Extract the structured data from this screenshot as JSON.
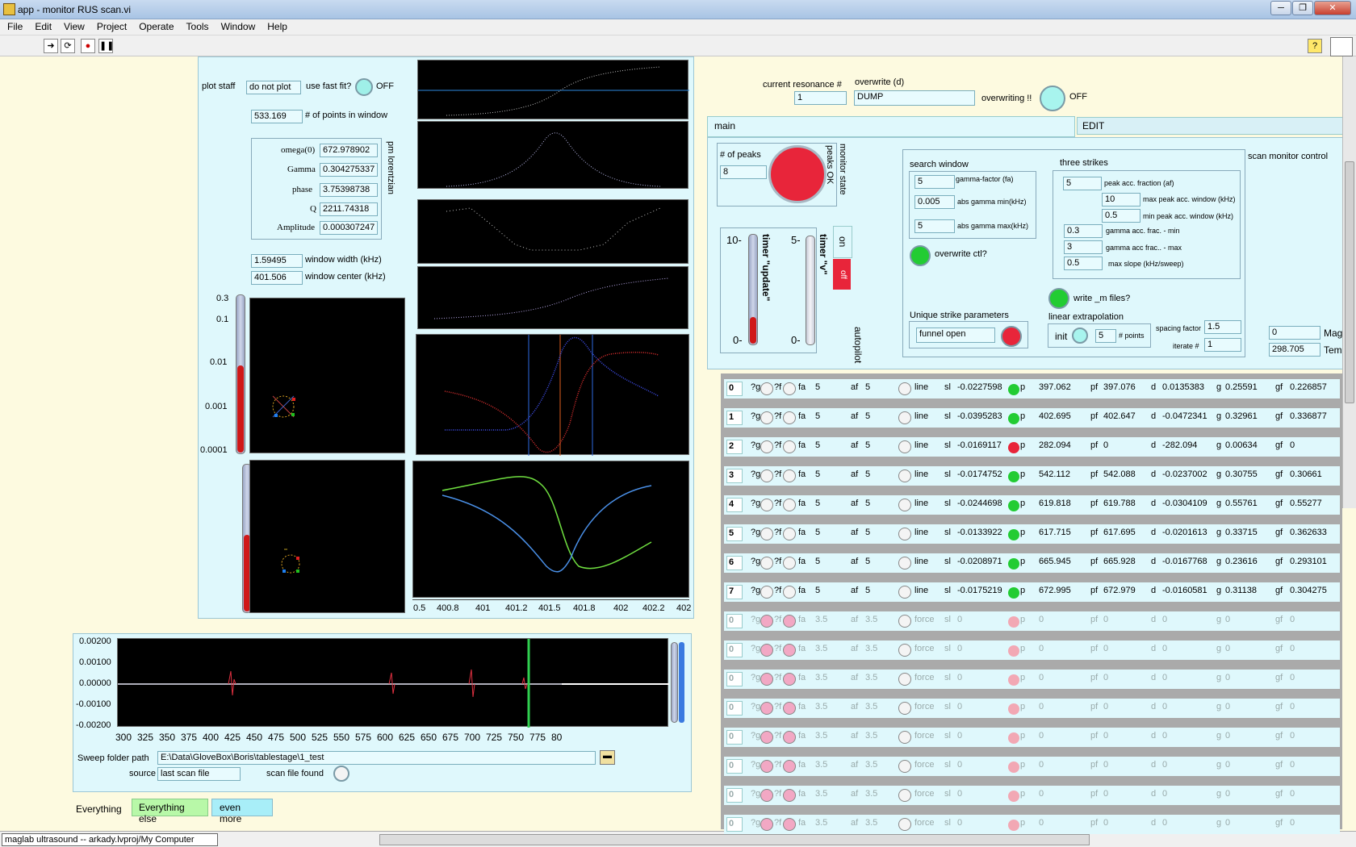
{
  "window": {
    "title": "app - monitor RUS scan.vi",
    "min": "─",
    "max": "❐",
    "close": "✕"
  },
  "menu": [
    "File",
    "Edit",
    "View",
    "Project",
    "Operate",
    "Tools",
    "Window",
    "Help"
  ],
  "help_label": "?",
  "left": {
    "plot_staff_label": "plot staff",
    "plot_staff_value": "do not plot",
    "fast_fit_label": "use fast fit?",
    "fast_fit_state": "OFF",
    "points_value": "533.169",
    "points_label": "# of points in window",
    "lorentzian_label": "pm lorentzian",
    "params": [
      {
        "label": "omega(0)",
        "value": "672.978902"
      },
      {
        "label": "Gamma",
        "value": "0.304275337"
      },
      {
        "label": "phase",
        "value": "3.75398738"
      },
      {
        "label": "Q",
        "value": "2211.74318"
      },
      {
        "label": "Amplitude",
        "value": "0.000307247"
      }
    ],
    "window_width_value": "1.59495",
    "window_width_label": "window width (kHz)",
    "window_center_value": "401.506",
    "window_center_label": "window center (kHz)",
    "log_ticks": [
      "0.3",
      "0.1",
      "0.01",
      "0.001",
      "0.0001"
    ],
    "zoom_x_ticks": [
      "0.5",
      "400.8",
      "401",
      "401.2",
      "401.5",
      "401.8",
      "402",
      "402.2",
      "402"
    ]
  },
  "sweep": {
    "y_ticks": [
      "0.00200",
      "0.00100",
      "0.00000",
      "-0.00100",
      "-0.00200"
    ],
    "x_ticks": [
      "300",
      "325",
      "350",
      "375",
      "400",
      "425",
      "450",
      "475",
      "500",
      "525",
      "550",
      "575",
      "600",
      "625",
      "650",
      "675",
      "700",
      "725",
      "750",
      "775",
      "80"
    ],
    "folder_label": "Sweep folder path",
    "folder_value": "E:\\Data\\GloveBox\\Boris\\tablestage\\1_test",
    "source_label": "source",
    "source_value": "last scan file",
    "scan_found_label": "scan file found"
  },
  "bottom_tabs": {
    "everything": "Everything",
    "else": "Everything else",
    "more": "even more"
  },
  "status_path": "maglab ultrasound -- arkady.lvproj/My Computer",
  "right": {
    "current_res_label": "current resonance #",
    "current_res_value": "1",
    "overwrite_label": "overwrite (d)",
    "overwrite_value": "DUMP",
    "overwriting_label": "overwriting !!",
    "overwriting_state": "OFF",
    "tab_main": "main",
    "tab_edit": "EDIT",
    "scan_monitor_label": "scan monitor control",
    "peaks_label": "# of peaks",
    "peaks_value": "8",
    "monitor_state_label": "monitor state",
    "peaks_ok_label": "peaks OK",
    "timer_update_label": "timer \"update\"",
    "timer_v_label": "timer \"v\"",
    "timer_update_ticks": [
      "10-",
      "0-"
    ],
    "timer_v_ticks": [
      "5-",
      "0-"
    ],
    "on_label": "on",
    "off_label": "off",
    "autopilot_label": "autopilot",
    "search_window_label": "search window",
    "search": [
      {
        "value": "5",
        "label": "gamma-factor (fa)"
      },
      {
        "value": "0.005",
        "label": "abs gamma min(kHz)"
      },
      {
        "value": "5",
        "label": "abs gamma max(kHz)"
      }
    ],
    "overwrite_ctl_label": "overwrite ctl?",
    "three_strikes_label": "three strikes",
    "strikes": [
      {
        "value": "5",
        "label": "peak acc. fraction (af)"
      },
      {
        "value": "10",
        "label": "max peak acc. window (kHz)"
      },
      {
        "value": "0.5",
        "label": "min peak acc. window (kHz)"
      },
      {
        "value": "0.3",
        "label": "gamma acc. frac. - min"
      },
      {
        "value": "3",
        "label": "gamma acc frac.. - max"
      },
      {
        "value": "0.5",
        "label": "max slope (kHz/sweep)"
      }
    ],
    "write_m_label": "write _m files?",
    "unique_label": "Unique strike parameters",
    "funnel_value": "funnel open",
    "linear_label": "linear extrapolation",
    "init_label": "init",
    "points_value": "5",
    "points_label": "# points",
    "spacing_label": "spacing factor",
    "spacing_value": "1.5",
    "iterate_label": "iterate #",
    "iterate_value": "1",
    "mag_value": "0",
    "mag_label": "Mag",
    "tem_value": "298.705",
    "tem_label": "Tem"
  },
  "rows": [
    {
      "idx": "0",
      "fa": "5",
      "af": "5",
      "mode": "line",
      "sl": "-0.0227598",
      "p": "397.062",
      "pf": "397.076",
      "d": "0.0135383",
      "g": "0.25591",
      "gf": "0.226857",
      "led": "#22cc33"
    },
    {
      "idx": "1",
      "fa": "5",
      "af": "5",
      "mode": "line",
      "sl": "-0.0395283",
      "p": "402.695",
      "pf": "402.647",
      "d": "-0.0472341",
      "g": "0.32961",
      "gf": "0.336877",
      "led": "#22cc33"
    },
    {
      "idx": "2",
      "fa": "5",
      "af": "5",
      "mode": "line",
      "sl": "-0.0169117",
      "p": "282.094",
      "pf": "0",
      "d": "-282.094",
      "g": "0.00634",
      "gf": "0",
      "led": "#e8253a"
    },
    {
      "idx": "3",
      "fa": "5",
      "af": "5",
      "mode": "line",
      "sl": "-0.0174752",
      "p": "542.112",
      "pf": "542.088",
      "d": "-0.0237002",
      "g": "0.30755",
      "gf": "0.30661",
      "led": "#22cc33"
    },
    {
      "idx": "4",
      "fa": "5",
      "af": "5",
      "mode": "line",
      "sl": "-0.0244698",
      "p": "619.818",
      "pf": "619.788",
      "d": "-0.0304109",
      "g": "0.55761",
      "gf": "0.55277",
      "led": "#22cc33"
    },
    {
      "idx": "5",
      "fa": "5",
      "af": "5",
      "mode": "line",
      "sl": "-0.0133922",
      "p": "617.715",
      "pf": "617.695",
      "d": "-0.0201613",
      "g": "0.33715",
      "gf": "0.362633",
      "led": "#22cc33"
    },
    {
      "idx": "6",
      "fa": "5",
      "af": "5",
      "mode": "line",
      "sl": "-0.0208971",
      "p": "665.945",
      "pf": "665.928",
      "d": "-0.0167768",
      "g": "0.23616",
      "gf": "0.293101",
      "led": "#22cc33"
    },
    {
      "idx": "7",
      "fa": "5",
      "af": "5",
      "mode": "line",
      "sl": "-0.0175219",
      "p": "672.995",
      "pf": "672.979",
      "d": "-0.0160581",
      "g": "0.31138",
      "gf": "0.304275",
      "led": "#22cc33"
    },
    {
      "idx": "0",
      "fa": "3.5",
      "af": "3.5",
      "mode": "force",
      "sl": "0",
      "p": "0",
      "pf": "0",
      "d": "0",
      "g": "0",
      "gf": "0",
      "led": "#f2a8b4"
    },
    {
      "idx": "0",
      "fa": "3.5",
      "af": "3.5",
      "mode": "force",
      "sl": "0",
      "p": "0",
      "pf": "0",
      "d": "0",
      "g": "0",
      "gf": "0",
      "led": "#f2a8b4"
    },
    {
      "idx": "0",
      "fa": "3.5",
      "af": "3.5",
      "mode": "force",
      "sl": "0",
      "p": "0",
      "pf": "0",
      "d": "0",
      "g": "0",
      "gf": "0",
      "led": "#f2a8b4"
    },
    {
      "idx": "0",
      "fa": "3.5",
      "af": "3.5",
      "mode": "force",
      "sl": "0",
      "p": "0",
      "pf": "0",
      "d": "0",
      "g": "0",
      "gf": "0",
      "led": "#f2a8b4"
    },
    {
      "idx": "0",
      "fa": "3.5",
      "af": "3.5",
      "mode": "force",
      "sl": "0",
      "p": "0",
      "pf": "0",
      "d": "0",
      "g": "0",
      "gf": "0",
      "led": "#f2a8b4"
    },
    {
      "idx": "0",
      "fa": "3.5",
      "af": "3.5",
      "mode": "force",
      "sl": "0",
      "p": "0",
      "pf": "0",
      "d": "0",
      "g": "0",
      "gf": "0",
      "led": "#f2a8b4"
    },
    {
      "idx": "0",
      "fa": "3.5",
      "af": "3.5",
      "mode": "force",
      "sl": "0",
      "p": "0",
      "pf": "0",
      "d": "0",
      "g": "0",
      "gf": "0",
      "led": "#f2a8b4"
    },
    {
      "idx": "0",
      "fa": "3.5",
      "af": "3.5",
      "mode": "force",
      "sl": "0",
      "p": "0",
      "pf": "0",
      "d": "0",
      "g": "0",
      "gf": "0",
      "led": "#f2a8b4"
    }
  ],
  "row_labels": {
    "g": "?g",
    "f": "?f",
    "fa": "fa",
    "af": "af",
    "sl": "sl",
    "p": "p",
    "pf": "pf",
    "d": "d",
    "gg": "g",
    "gf": "gf"
  }
}
